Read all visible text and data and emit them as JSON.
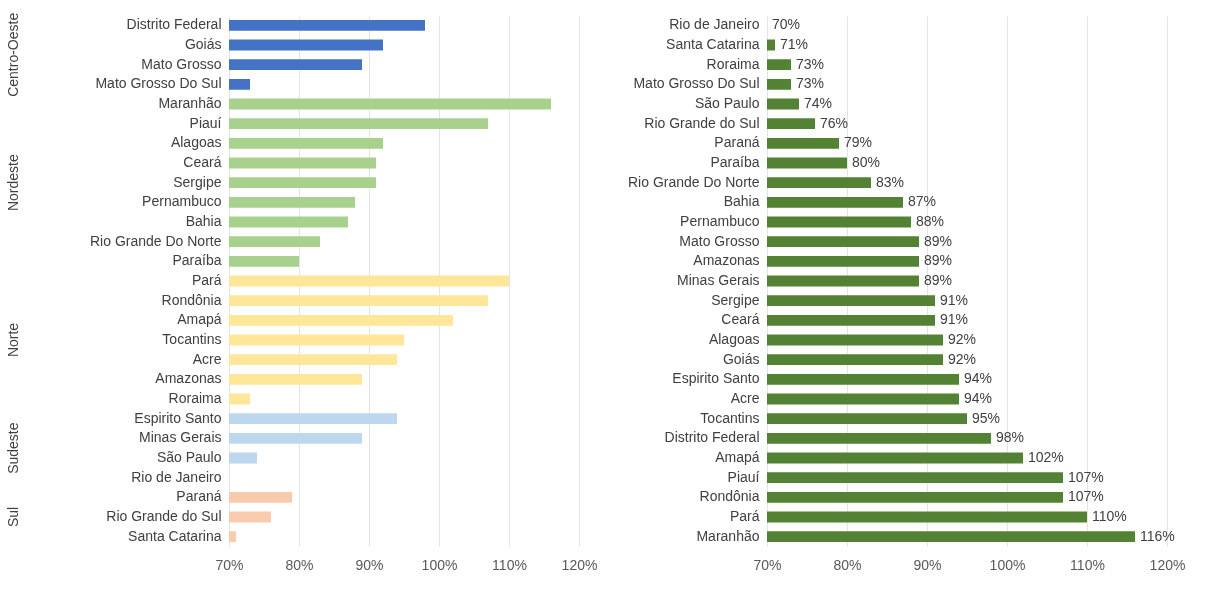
{
  "chart_data": [
    {
      "type": "bar",
      "orientation": "horizontal",
      "categories": [
        "Distrito Federal",
        "Goiás",
        "Mato Grosso",
        "Mato Grosso Do Sul",
        "Maranhão",
        "Piauí",
        "Alagoas",
        "Ceará",
        "Sergipe",
        "Pernambuco",
        "Bahia",
        "Rio Grande Do Norte",
        "Paraíba",
        "Pará",
        "Rondônia",
        "Amapá",
        "Tocantins",
        "Acre",
        "Amazonas",
        "Roraima",
        "Espirito Santo",
        "Minas Gerais",
        "São Paulo",
        "Rio de Janeiro",
        "Paraná",
        "Rio Grande do Sul",
        "Santa Catarina"
      ],
      "series": [
        {
          "name": "Centro-Oeste",
          "color": "#4472c4",
          "values": [
            98,
            92,
            89,
            73,
            null,
            null,
            null,
            null,
            null,
            null,
            null,
            null,
            null,
            null,
            null,
            null,
            null,
            null,
            null,
            null,
            null,
            null,
            null,
            null,
            null,
            null,
            null
          ]
        },
        {
          "name": "Nordeste",
          "color": "#a9d18e",
          "values": [
            null,
            null,
            null,
            null,
            116,
            107,
            92,
            91,
            91,
            88,
            87,
            83,
            80,
            null,
            null,
            null,
            null,
            null,
            null,
            null,
            null,
            null,
            null,
            null,
            null,
            null,
            null
          ]
        },
        {
          "name": "Norte",
          "color": "#ffe699",
          "values": [
            null,
            null,
            null,
            null,
            null,
            null,
            null,
            null,
            null,
            null,
            null,
            null,
            null,
            110,
            107,
            102,
            95,
            94,
            89,
            73,
            null,
            null,
            null,
            null,
            null,
            null,
            null
          ]
        },
        {
          "name": "Sudeste",
          "color": "#bdd7ee",
          "values": [
            null,
            null,
            null,
            null,
            null,
            null,
            null,
            null,
            null,
            null,
            null,
            null,
            null,
            null,
            null,
            null,
            null,
            null,
            null,
            null,
            94,
            89,
            74,
            70,
            null,
            null,
            null
          ]
        },
        {
          "name": "Sul",
          "color": "#f8cbad",
          "values": [
            null,
            null,
            null,
            null,
            null,
            null,
            null,
            null,
            null,
            null,
            null,
            null,
            null,
            null,
            null,
            null,
            null,
            null,
            null,
            null,
            null,
            null,
            null,
            null,
            79,
            76,
            71
          ]
        }
      ],
      "xlim": [
        70,
        120
      ],
      "xticks": [
        {
          "value": 70,
          "label": "70%"
        },
        {
          "value": 80,
          "label": "80%"
        },
        {
          "value": 90,
          "label": "90%"
        },
        {
          "value": 100,
          "label": "100%"
        },
        {
          "value": 110,
          "label": "110%"
        },
        {
          "value": 120,
          "label": "120%"
        }
      ],
      "grid": "x"
    },
    {
      "type": "bar",
      "orientation": "horizontal",
      "categories": [
        "Rio de Janeiro",
        "Santa Catarina",
        "Roraima",
        "Mato Grosso Do Sul",
        "São Paulo",
        "Rio Grande do Sul",
        "Paraná",
        "Paraíba",
        "Rio Grande Do Norte",
        "Bahia",
        "Pernambuco",
        "Mato Grosso",
        "Amazonas",
        "Minas Gerais",
        "Sergipe",
        "Ceará",
        "Alagoas",
        "Goiás",
        "Espirito Santo",
        "Acre",
        "Tocantins",
        "Distrito Federal",
        "Amapá",
        "Piauí",
        "Rondônia",
        "Pará",
        "Maranhão"
      ],
      "series": [
        {
          "color": "#548235",
          "values": [
            70,
            71,
            73,
            73,
            74,
            76,
            79,
            80,
            83,
            87,
            88,
            89,
            89,
            89,
            91,
            91,
            92,
            92,
            94,
            94,
            95,
            98,
            102,
            107,
            107,
            110,
            116
          ],
          "value_labels": [
            "70%",
            "71%",
            "73%",
            "73%",
            "74%",
            "76%",
            "79%",
            "80%",
            "83%",
            "87%",
            "88%",
            "89%",
            "89%",
            "89%",
            "91%",
            "91%",
            "92%",
            "92%",
            "94%",
            "94%",
            "95%",
            "98%",
            "102%",
            "107%",
            "107%",
            "110%",
            "116%"
          ]
        }
      ],
      "xlim": [
        70,
        120
      ],
      "xticks": [
        {
          "value": 70,
          "label": "70%"
        },
        {
          "value": 80,
          "label": "80%"
        },
        {
          "value": 90,
          "label": "90%"
        },
        {
          "value": 100,
          "label": "100%"
        },
        {
          "value": 110,
          "label": "110%"
        },
        {
          "value": 120,
          "label": "120%"
        }
      ],
      "grid": "x"
    }
  ]
}
